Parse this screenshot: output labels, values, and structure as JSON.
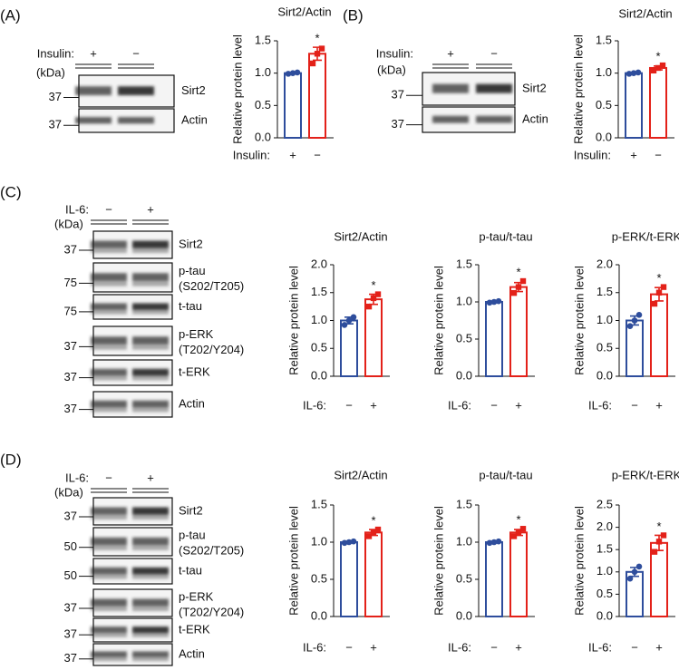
{
  "panels": [
    {
      "label": "(A)",
      "treatment": "Insulin:",
      "lanes": [
        "+",
        "−"
      ],
      "unit": "(kDa)",
      "rows": [
        {
          "marker": "37",
          "name": "Sirt2"
        },
        {
          "marker": "37",
          "name": "Actin"
        }
      ]
    },
    {
      "label": "(B)",
      "treatment": "Insulin:",
      "lanes": [
        "+",
        "−"
      ],
      "unit": "(kDa)",
      "rows": [
        {
          "marker": "37",
          "name": "Sirt2"
        },
        {
          "marker": "37",
          "name": "Actin"
        }
      ]
    },
    {
      "label": "(C)",
      "treatment": "IL-6:",
      "lanes": [
        "−",
        "+"
      ],
      "unit": "(kDa)",
      "rows": [
        {
          "marker": "37",
          "name": "Sirt2"
        },
        {
          "marker": "75",
          "name": "p-tau",
          "detail": "(S202/T205)"
        },
        {
          "marker": "75",
          "name": "t-tau"
        },
        {
          "marker": "37",
          "name": "p-ERK",
          "detail": "(T202/Y204)"
        },
        {
          "marker": "37",
          "name": "t-ERK"
        },
        {
          "marker": "37",
          "name": "Actin"
        }
      ]
    },
    {
      "label": "(D)",
      "treatment": "IL-6:",
      "lanes": [
        "−",
        "+"
      ],
      "unit": "(kDa)",
      "rows": [
        {
          "marker": "37",
          "name": "Sirt2"
        },
        {
          "marker": "50",
          "name": "p-tau",
          "detail": "(S202/T205)"
        },
        {
          "marker": "50",
          "name": "t-tau"
        },
        {
          "marker": "37",
          "name": "p-ERK",
          "detail": "(T202/Y204)"
        },
        {
          "marker": "37",
          "name": "t-ERK"
        },
        {
          "marker": "37",
          "name": "Actin"
        }
      ]
    }
  ],
  "chart_data": [
    {
      "type": "bar",
      "title": "Sirt2/Actin",
      "ylabel": "Relative protein level",
      "xlabel": "Insulin:",
      "categories": [
        "+",
        "−"
      ],
      "colors": [
        "#2e4d9c",
        "#e32119"
      ],
      "values": [
        1.0,
        1.3
      ],
      "errors": [
        0.01,
        0.1
      ],
      "points": [
        [
          0.99,
          1.0,
          1.01
        ],
        [
          1.15,
          1.3,
          1.38
        ]
      ],
      "annotation": "*",
      "ylim": [
        0,
        1.5
      ],
      "yticks": [
        {
          "value": 0,
          "label": "0.0"
        },
        {
          "value": 0.5,
          "label": "0.5"
        },
        {
          "value": 1,
          "label": "1.0"
        },
        {
          "value": 1.5,
          "label": "1.5"
        }
      ]
    },
    {
      "type": "bar",
      "title": "Sirt2/Actin",
      "ylabel": "Relative protein level",
      "xlabel": "Insulin:",
      "categories": [
        "+",
        "−"
      ],
      "colors": [
        "#2e4d9c",
        "#e32119"
      ],
      "values": [
        1.0,
        1.08
      ],
      "errors": [
        0.01,
        0.03
      ],
      "points": [
        [
          0.99,
          1.0,
          1.01
        ],
        [
          1.04,
          1.08,
          1.12
        ]
      ],
      "annotation": "*",
      "ylim": [
        0,
        1.5
      ],
      "yticks": [
        {
          "value": 0,
          "label": "0.0"
        },
        {
          "value": 0.5,
          "label": "0.5"
        },
        {
          "value": 1,
          "label": "1.0"
        },
        {
          "value": 1.5,
          "label": "1.5"
        }
      ]
    },
    {
      "type": "bar",
      "title": "Sirt2/Actin",
      "ylabel": "Relative protein level",
      "xlabel": "IL-6:",
      "categories": [
        "−",
        "+"
      ],
      "colors": [
        "#2e4d9c",
        "#e32119"
      ],
      "values": [
        1.0,
        1.38
      ],
      "errors": [
        0.06,
        0.09
      ],
      "points": [
        [
          0.92,
          1.0,
          1.06
        ],
        [
          1.25,
          1.4,
          1.47
        ]
      ],
      "annotation": "*",
      "ylim": [
        0,
        2
      ],
      "yticks": [
        {
          "value": 0,
          "label": "0.0"
        },
        {
          "value": 0.5,
          "label": "0.5"
        },
        {
          "value": 1,
          "label": "1.0"
        },
        {
          "value": 1.5,
          "label": "1.5"
        },
        {
          "value": 2,
          "label": "2.0"
        }
      ]
    },
    {
      "type": "bar",
      "title": "p-tau/t-tau",
      "ylabel": "Relative protein level",
      "xlabel": "IL-6:",
      "categories": [
        "−",
        "+"
      ],
      "colors": [
        "#2e4d9c",
        "#e32119"
      ],
      "values": [
        1.0,
        1.2
      ],
      "errors": [
        0.01,
        0.06
      ],
      "points": [
        [
          0.99,
          1.0,
          1.01
        ],
        [
          1.12,
          1.2,
          1.28
        ]
      ],
      "annotation": "*",
      "ylim": [
        0,
        1.5
      ],
      "yticks": [
        {
          "value": 0,
          "label": "0.0"
        },
        {
          "value": 0.5,
          "label": "0.5"
        },
        {
          "value": 1,
          "label": "1.0"
        },
        {
          "value": 1.5,
          "label": "1.5"
        }
      ]
    },
    {
      "type": "bar",
      "title": "p-ERK/t-ERK",
      "ylabel": "Relative protein level",
      "xlabel": "IL-6:",
      "categories": [
        "−",
        "+"
      ],
      "colors": [
        "#2e4d9c",
        "#e32119"
      ],
      "values": [
        1.0,
        1.47
      ],
      "errors": [
        0.08,
        0.12
      ],
      "points": [
        [
          0.9,
          1.0,
          1.1
        ],
        [
          1.3,
          1.5,
          1.6
        ]
      ],
      "annotation": "*",
      "ylim": [
        0,
        2
      ],
      "yticks": [
        {
          "value": 0,
          "label": "0.0"
        },
        {
          "value": 0.5,
          "label": "0.5"
        },
        {
          "value": 1,
          "label": "1.0"
        },
        {
          "value": 1.5,
          "label": "1.5"
        },
        {
          "value": 2,
          "label": "2.0"
        }
      ]
    },
    {
      "type": "bar",
      "title": "Sirt2/Actin",
      "ylabel": "Relative protein level",
      "xlabel": "IL-6:",
      "categories": [
        "−",
        "+"
      ],
      "colors": [
        "#2e4d9c",
        "#e32119"
      ],
      "values": [
        1.0,
        1.13
      ],
      "errors": [
        0.01,
        0.04
      ],
      "points": [
        [
          0.99,
          1.0,
          1.01
        ],
        [
          1.08,
          1.13,
          1.17
        ]
      ],
      "annotation": "*",
      "ylim": [
        0,
        1.5
      ],
      "yticks": [
        {
          "value": 0,
          "label": "0.0"
        },
        {
          "value": 0.5,
          "label": "0.5"
        },
        {
          "value": 1,
          "label": "1.0"
        },
        {
          "value": 1.5,
          "label": "1.5"
        }
      ]
    },
    {
      "type": "bar",
      "title": "p-tau/t-tau",
      "ylabel": "Relative protein level",
      "xlabel": "IL-6:",
      "categories": [
        "−",
        "+"
      ],
      "colors": [
        "#2e4d9c",
        "#e32119"
      ],
      "values": [
        1.0,
        1.13
      ],
      "errors": [
        0.01,
        0.04
      ],
      "points": [
        [
          0.99,
          1.0,
          1.01
        ],
        [
          1.08,
          1.13,
          1.18
        ]
      ],
      "annotation": "*",
      "ylim": [
        0,
        1.5
      ],
      "yticks": [
        {
          "value": 0,
          "label": "0.0"
        },
        {
          "value": 0.5,
          "label": "0.5"
        },
        {
          "value": 1,
          "label": "1.0"
        },
        {
          "value": 1.5,
          "label": "1.5"
        }
      ]
    },
    {
      "type": "bar",
      "title": "p-ERK/t-ERK",
      "ylabel": "Relative protein level",
      "xlabel": "IL-6:",
      "categories": [
        "−",
        "+"
      ],
      "colors": [
        "#2e4d9c",
        "#e32119"
      ],
      "values": [
        1.0,
        1.65
      ],
      "errors": [
        0.1,
        0.17
      ],
      "points": [
        [
          0.85,
          1.0,
          1.12
        ],
        [
          1.45,
          1.68,
          1.82
        ]
      ],
      "annotation": "*",
      "ylim": [
        0,
        2.5
      ],
      "yticks": [
        {
          "value": 0,
          "label": "0.0"
        },
        {
          "value": 0.5,
          "label": "0.5"
        },
        {
          "value": 1,
          "label": "1.0"
        },
        {
          "value": 1.5,
          "label": "1.5"
        },
        {
          "value": 2,
          "label": "2.0"
        },
        {
          "value": 2.5,
          "label": "2.5"
        }
      ]
    }
  ]
}
